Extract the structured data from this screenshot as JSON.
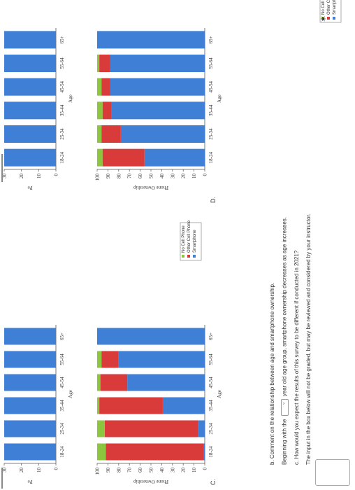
{
  "legend_items": [
    {
      "label": "No Cell Phone",
      "color": "#8cc63f"
    },
    {
      "label": "Other Cell Phone",
      "color": "#d93a3a"
    },
    {
      "label": "Smartphone",
      "color": "#3f7fd6"
    }
  ],
  "legend_items_right": [
    {
      "label": "No Cell Ph",
      "color": "#8cc63f"
    },
    {
      "label": "Other Cell",
      "color": "#d93a3a"
    },
    {
      "label": "Smartphor",
      "color": "#3f7fd6"
    }
  ],
  "labels": {
    "section_c": "C.",
    "section_d": "D."
  },
  "questions": {
    "b_prompt": "b. Comment on the relationship between age and smartphone ownership.",
    "b_sentence_start": "Beginning with the",
    "b_sentence_end": "year old age group, smartphone ownership decreases as age increases.",
    "c_prompt": "c. How would you expect the results of this survey to be different if conducted in 2021?",
    "c_note": "The input in the box below will not be graded, but may be reviewed and considered by your instructor."
  },
  "chart_data": [
    {
      "type": "bar",
      "stacked": true,
      "ylabel": "Pe",
      "xlabel": "Age",
      "categories": [
        "18-24",
        "25-34",
        "35-44",
        "45-54",
        "55-64",
        "65+"
      ],
      "yticks": [
        0,
        10,
        20,
        30
      ],
      "series": [
        {
          "values": [
            30,
            30,
            30,
            30,
            30,
            30
          ],
          "color": "#3f7fd6"
        },
        {
          "values": [
            2,
            1,
            1,
            2,
            6,
            12
          ],
          "color": "#d93a3a"
        }
      ]
    },
    {
      "type": "bar",
      "stacked": true,
      "ylabel": "Pe",
      "xlabel": "Age",
      "categories": [
        "18-24",
        "25-34",
        "35-44",
        "45-54",
        "55-64",
        "65+"
      ],
      "yticks": [
        0,
        10,
        20,
        30
      ],
      "series": [
        {
          "values": [
            30,
            30,
            30,
            30,
            30,
            30
          ],
          "color": "#3f7fd6"
        },
        {
          "values": [
            0,
            0,
            0,
            0,
            5,
            8
          ],
          "color": "#d93a3a"
        }
      ]
    },
    {
      "type": "bar",
      "stacked": true,
      "ylabel": "Phone Ownership",
      "xlabel": "Age",
      "categories": [
        "18-24",
        "25-34",
        "35-44",
        "45-54",
        "55-64",
        "65+"
      ],
      "yticks": [
        0,
        10,
        20,
        30,
        40,
        50,
        60,
        70,
        80,
        90,
        100
      ],
      "ylim": [
        0,
        100
      ],
      "series": [
        {
          "name": "Smartphone",
          "values": [
            1,
            6,
            39,
            72,
            80,
            100
          ],
          "color": "#3f7fd6"
        },
        {
          "name": "Other Cell Phone",
          "values": [
            91,
            87,
            59,
            25,
            16,
            0
          ],
          "color": "#d93a3a"
        },
        {
          "name": "No Cell Phone",
          "values": [
            8,
            7,
            2,
            3,
            4,
            0
          ],
          "color": "#8cc63f"
        }
      ]
    },
    {
      "type": "bar",
      "stacked": true,
      "ylabel": "Phone Ownership",
      "xlabel": "Age",
      "categories": [
        "18-24",
        "25-34",
        "35-44",
        "45-54",
        "55-64",
        "65+"
      ],
      "yticks": [
        0,
        10,
        20,
        30,
        40,
        50,
        60,
        70,
        80,
        90,
        100
      ],
      "ylim": [
        0,
        100
      ],
      "series": [
        {
          "name": "Smartphone",
          "values": [
            56,
            78,
            87,
            88,
            88,
            100
          ],
          "color": "#3f7fd6"
        },
        {
          "name": "Other Cell Phone",
          "values": [
            39,
            18,
            8,
            8,
            10,
            0
          ],
          "color": "#d93a3a"
        },
        {
          "name": "No Cell Phone",
          "values": [
            5,
            4,
            5,
            4,
            2,
            0
          ],
          "color": "#8cc63f"
        }
      ]
    }
  ]
}
